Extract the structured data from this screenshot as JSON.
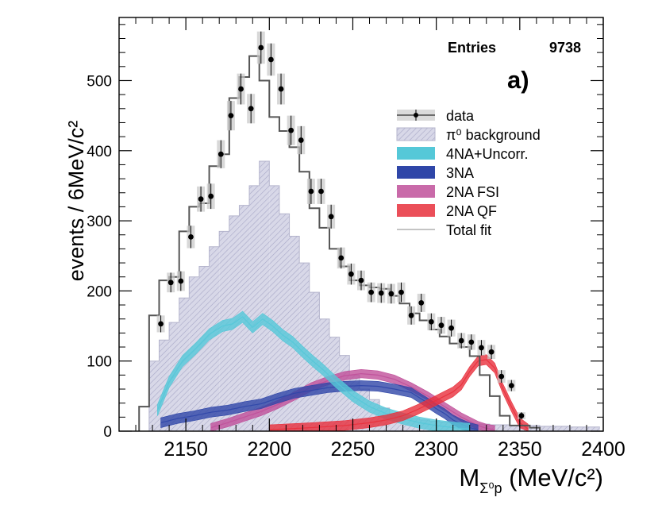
{
  "chart_data": {
    "type": "histogram",
    "ylabel": "events / 6MeV/c²",
    "xlabel": {
      "main": "M",
      "sub": "Σ⁰p",
      "unit": " (MeV/c²)"
    },
    "xlim": [
      2110,
      2400
    ],
    "ylim": [
      0,
      590
    ],
    "xticks": [
      2150,
      2200,
      2250,
      2300,
      2350,
      2400
    ],
    "yticks": [
      0,
      100,
      200,
      300,
      400,
      500
    ],
    "bin_width": 6,
    "stats": {
      "label": "Entries",
      "value": "9738"
    },
    "panel_label": "a)",
    "legend": [
      {
        "key": "data",
        "label": "data"
      },
      {
        "key": "pi0",
        "label": "π⁰ background"
      },
      {
        "key": "na4",
        "label": "4NA+Uncorr."
      },
      {
        "key": "na3",
        "label": "3NA"
      },
      {
        "key": "fsi",
        "label": "2NA FSI"
      },
      {
        "key": "qf",
        "label": "2NA QF"
      },
      {
        "key": "total",
        "label": "Total fit"
      }
    ],
    "colors": {
      "pi0_fill": "#d6d6e6",
      "pi0_hatch": "#9c9cc0",
      "na4": "#55c8d8",
      "na3": "#2f46a8",
      "fsi": "#c0509a",
      "qf": "#e8303c",
      "total": "#555555",
      "data": "#000000"
    },
    "series": [
      {
        "name": "data",
        "x": [
          2135,
          2141,
          2147,
          2153,
          2159,
          2165,
          2171,
          2177,
          2183,
          2189,
          2195,
          2201,
          2207,
          2213,
          2219,
          2225,
          2231,
          2237,
          2243,
          2249,
          2255,
          2261,
          2267,
          2273,
          2279,
          2285,
          2291,
          2297,
          2303,
          2309,
          2315,
          2321,
          2327,
          2333,
          2339,
          2345,
          2351
        ],
        "y": [
          153,
          212,
          214,
          277,
          331,
          335,
          395,
          450,
          488,
          460,
          547,
          530,
          488,
          429,
          415,
          342,
          342,
          306,
          247,
          224,
          215,
          198,
          197,
          196,
          198,
          165,
          183,
          156,
          151,
          147,
          129,
          127,
          119,
          113,
          78,
          65,
          22
        ],
        "yerr": [
          12,
          14,
          14,
          16,
          18,
          18,
          20,
          21,
          22,
          21,
          23,
          23,
          22,
          21,
          20,
          18,
          18,
          17,
          15,
          15,
          14,
          14,
          14,
          14,
          14,
          13,
          13,
          12,
          12,
          12,
          11,
          11,
          11,
          10,
          9,
          8,
          5
        ]
      },
      {
        "name": "Total fit",
        "bins": [
          2122,
          2128,
          2134,
          2140,
          2146,
          2152,
          2158,
          2164,
          2170,
          2176,
          2182,
          2188,
          2194,
          2200,
          2206,
          2212,
          2218,
          2224,
          2230,
          2236,
          2242,
          2248,
          2254,
          2260,
          2266,
          2272,
          2278,
          2284,
          2290,
          2296,
          2302,
          2308,
          2314,
          2320,
          2326,
          2332,
          2338,
          2344,
          2350,
          2356,
          2362
        ],
        "values": [
          35,
          165,
          215,
          220,
          285,
          320,
          325,
          378,
          395,
          475,
          505,
          535,
          500,
          448,
          428,
          405,
          370,
          318,
          290,
          260,
          235,
          215,
          208,
          205,
          203,
          193,
          182,
          168,
          158,
          145,
          135,
          125,
          120,
          107,
          80,
          50,
          22,
          8,
          8,
          5
        ]
      },
      {
        "name": "π⁰ background",
        "bins": [
          2128,
          2134,
          2140,
          2146,
          2152,
          2158,
          2164,
          2170,
          2176,
          2182,
          2188,
          2194,
          2200,
          2206,
          2212,
          2218,
          2224,
          2230,
          2236,
          2242,
          2248,
          2254,
          2260,
          2266,
          2272,
          2278,
          2284,
          2290,
          2296,
          2302,
          2308,
          2314,
          2320,
          2326,
          2332,
          2338,
          2344,
          2350,
          2356,
          2362,
          2368,
          2374,
          2380,
          2386,
          2392,
          2398
        ],
        "values": [
          100,
          130,
          155,
          190,
          220,
          235,
          263,
          285,
          307,
          322,
          350,
          385,
          350,
          310,
          278,
          240,
          198,
          160,
          134,
          108,
          80,
          60,
          45,
          33,
          25,
          20,
          18,
          16,
          14,
          13,
          12,
          11,
          10,
          10,
          9,
          9,
          8,
          8,
          8,
          7,
          7,
          7,
          6,
          6,
          6
        ]
      },
      {
        "name": "4NA+Uncorr.",
        "x": [
          2133,
          2140,
          2148,
          2156,
          2164,
          2172,
          2178,
          2184,
          2190,
          2196,
          2202,
          2208,
          2214,
          2220,
          2226,
          2232,
          2240,
          2250,
          2260,
          2270,
          2280,
          2290,
          2300,
          2310,
          2320
        ],
        "y": [
          30,
          70,
          100,
          118,
          138,
          150,
          153,
          163,
          148,
          160,
          150,
          137,
          127,
          113,
          100,
          88,
          70,
          50,
          35,
          25,
          18,
          12,
          8,
          5,
          3
        ],
        "err": 8
      },
      {
        "name": "3NA",
        "x": [
          2135,
          2145,
          2155,
          2165,
          2175,
          2185,
          2195,
          2205,
          2215,
          2225,
          2235,
          2245,
          2255,
          2265,
          2275,
          2285,
          2295,
          2300,
          2305,
          2310,
          2315,
          2320,
          2325
        ],
        "y": [
          12,
          18,
          22,
          27,
          30,
          35,
          39,
          47,
          54,
          58,
          62,
          64,
          65,
          64,
          60,
          55,
          40,
          32,
          25,
          16,
          10,
          5,
          2
        ],
        "err": 7
      },
      {
        "name": "2NA FSI",
        "x": [
          2165,
          2175,
          2185,
          2195,
          2205,
          2215,
          2225,
          2235,
          2245,
          2255,
          2265,
          2275,
          2285,
          2295,
          2305,
          2315,
          2325,
          2330,
          2335
        ],
        "y": [
          5,
          12,
          20,
          28,
          38,
          50,
          63,
          72,
          79,
          82,
          80,
          74,
          63,
          50,
          35,
          20,
          8,
          4,
          2
        ],
        "err": 6
      },
      {
        "name": "2NA QF",
        "x": [
          2200,
          2225,
          2245,
          2260,
          2270,
          2280,
          2288,
          2295,
          2300,
          2305,
          2310,
          2315,
          2320,
          2325,
          2330,
          2335,
          2340,
          2345,
          2350,
          2355
        ],
        "y": [
          2,
          5,
          8,
          12,
          16,
          22,
          30,
          38,
          44,
          50,
          56,
          66,
          85,
          100,
          102,
          90,
          60,
          35,
          12,
          3
        ],
        "err": 7
      }
    ]
  }
}
